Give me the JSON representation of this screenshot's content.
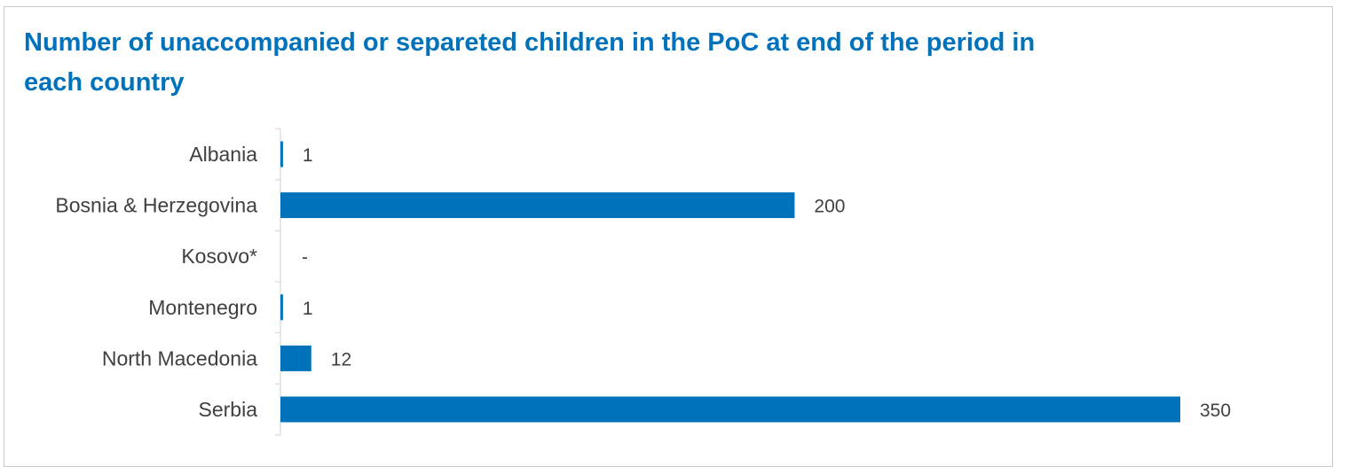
{
  "chart_data": {
    "type": "bar",
    "orientation": "horizontal",
    "title": "Number of unaccompanied or separeted children in the PoC at end of the period in each country",
    "categories": [
      "Albania",
      "Bosnia & Herzegovina",
      "Kosovo*",
      "Montenegro",
      "North Macedonia",
      "Serbia"
    ],
    "values": [
      1,
      200,
      0,
      1,
      12,
      350
    ],
    "value_labels": [
      "1",
      "200",
      "-",
      "1",
      "12",
      "350"
    ],
    "xlabel": "",
    "ylabel": "",
    "xlim": [
      0,
      350
    ],
    "grid": false,
    "legend": "none",
    "bar_color": "#0072bc"
  }
}
